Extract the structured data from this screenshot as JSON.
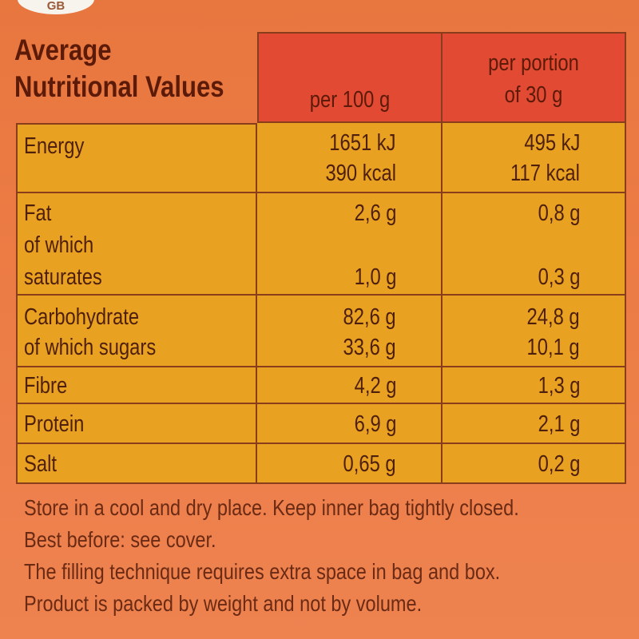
{
  "badge": {
    "text": "GB"
  },
  "heading": {
    "line1": "Average",
    "line2": "Nutritional Values"
  },
  "columns": {
    "per100": "per 100 g",
    "portion_line1": "per portion",
    "portion_line2": "of 30 g"
  },
  "rows": {
    "energy": {
      "label": "Energy",
      "v100_kj": "1651 kJ",
      "v100_kcal": "390 kcal",
      "vp_kj": "495 kJ",
      "vp_kcal": "117 kcal"
    },
    "fat": {
      "label": "Fat",
      "sub1": "of which",
      "sub2": "saturates",
      "v100": "2,6 g",
      "v100_sat": "1,0 g",
      "vp": "0,8 g",
      "vp_sat": "0,3 g"
    },
    "carb": {
      "label": "Carbohydrate",
      "sub": "of which sugars",
      "v100": "82,6 g",
      "v100_sug": "33,6 g",
      "vp": "24,8 g",
      "vp_sug": "10,1 g"
    },
    "fibre": {
      "label": "Fibre",
      "v100": "4,2 g",
      "vp": "1,3 g"
    },
    "protein": {
      "label": "Protein",
      "v100": "6,9 g",
      "vp": "2,1 g"
    },
    "salt": {
      "label": "Salt",
      "v100": "0,65 g",
      "vp": "0,2 g"
    }
  },
  "footer": {
    "line1": "Store in a cool and dry place. Keep inner bag tightly closed.",
    "line2": "Best before: see cover.",
    "line3": "The filling technique requires extra space in bag and box.",
    "line4": "Product is packed by weight and not by volume."
  },
  "colors": {
    "header_red": "#e24a33",
    "cell_yellow": "#e8a120",
    "background_orange": "#ec7c45",
    "text_brown": "#5c1a08"
  }
}
